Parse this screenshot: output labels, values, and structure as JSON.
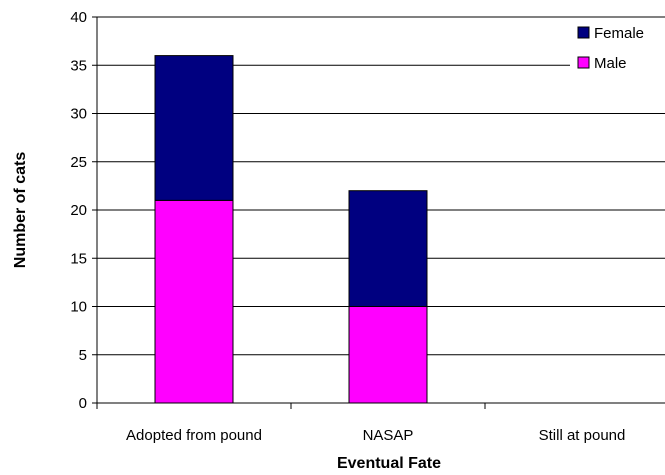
{
  "chart_data": {
    "type": "bar",
    "stacked": true,
    "categories": [
      "Adopted from pound",
      "NASAP",
      "Still at pound"
    ],
    "series": [
      {
        "name": "Male",
        "values": [
          21,
          10,
          0
        ],
        "color": "#ff00ff"
      },
      {
        "name": "Female",
        "values": [
          15,
          12,
          0
        ],
        "color": "#000080"
      }
    ],
    "legend_order": [
      "Female",
      "Male"
    ],
    "xlabel": "Eventual Fate",
    "ylabel": "Number of cats",
    "ylim": [
      0,
      40
    ],
    "yticks": [
      0,
      5,
      10,
      15,
      20,
      25,
      30,
      35,
      40
    ],
    "grid": true,
    "legend_position": "top-right"
  }
}
